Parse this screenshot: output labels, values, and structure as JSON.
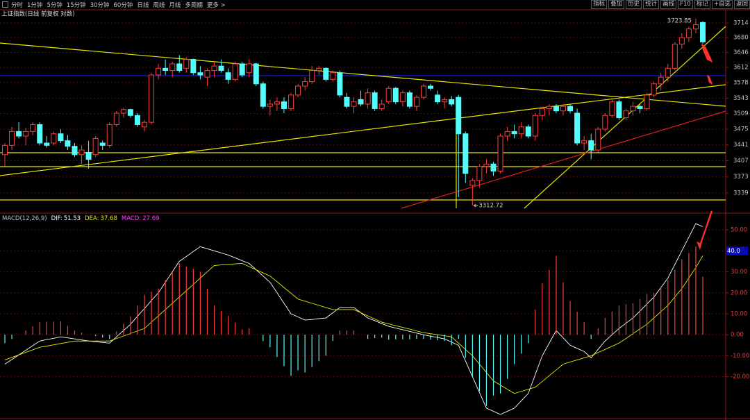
{
  "toolbar": {
    "periods": [
      "分时",
      "1分钟",
      "5分钟",
      "15分钟",
      "30分钟",
      "60分钟",
      "日线",
      "周线",
      "月线",
      "多周期",
      "更多 >"
    ],
    "tools": [
      "指标",
      "叠加",
      "历史",
      "统计",
      "画线",
      "F10",
      "标记",
      "+自选",
      "返回"
    ]
  },
  "chart_data": [
    {
      "type": "candlestick",
      "title": "上证指数(日线 前复权 对数)",
      "log_scale": true,
      "grid": true,
      "ylim": [
        3300,
        3735
      ],
      "yticks": [
        3339,
        3373,
        3407,
        3441,
        3475,
        3509,
        3543,
        3578,
        3612,
        3646,
        3680,
        3714
      ],
      "up_color": "#ff3c3c",
      "down_color": "#54fcfc",
      "max_label": 3723.85,
      "min_label": 3312.72,
      "open": [
        3420,
        3440,
        3470,
        3460,
        3470,
        3485,
        3445,
        3445,
        3465,
        3450,
        3438,
        3420,
        3425,
        3420,
        3445,
        3440,
        3485,
        3510,
        3518,
        3505,
        3480,
        3490,
        3595,
        3610,
        3605,
        3620,
        3610,
        3630,
        3600,
        3590,
        3605,
        3615,
        3600,
        3585,
        3620,
        3600,
        3620,
        3575,
        3525,
        3530,
        3535,
        3520,
        3550,
        3570,
        3580,
        3605,
        3610,
        3585,
        3600,
        3545,
        3525,
        3540,
        3530,
        3555,
        3520,
        3535,
        3565,
        3535,
        3555,
        3525,
        3545,
        3570,
        3550,
        3535,
        3540,
        3545,
        3465,
        3355,
        3365,
        3395,
        3400,
        3385,
        3460,
        3470,
        3465,
        3480,
        3460,
        3505,
        3520,
        3525,
        3515,
        3525,
        3510,
        3445,
        3450,
        3430,
        3475,
        3505,
        3535,
        3500,
        3515,
        3525,
        3520,
        3550,
        3575,
        3590,
        3610,
        3665,
        3680,
        3700,
        3715
      ],
      "high": [
        3445,
        3480,
        3490,
        3478,
        3490,
        3490,
        3460,
        3470,
        3475,
        3462,
        3445,
        3440,
        3450,
        3460,
        3450,
        3490,
        3515,
        3522,
        3520,
        3510,
        3495,
        3600,
        3620,
        3630,
        3625,
        3640,
        3635,
        3632,
        3615,
        3610,
        3625,
        3630,
        3610,
        3625,
        3625,
        3630,
        3622,
        3580,
        3540,
        3545,
        3545,
        3555,
        3575,
        3590,
        3615,
        3615,
        3612,
        3605,
        3605,
        3555,
        3545,
        3560,
        3565,
        3560,
        3540,
        3570,
        3568,
        3560,
        3560,
        3550,
        3575,
        3575,
        3560,
        3545,
        3548,
        3550,
        3470,
        3370,
        3400,
        3410,
        3405,
        3465,
        3480,
        3485,
        3490,
        3485,
        3510,
        3525,
        3530,
        3530,
        3530,
        3530,
        3520,
        3460,
        3465,
        3480,
        3510,
        3540,
        3540,
        3520,
        3535,
        3530,
        3555,
        3580,
        3600,
        3620,
        3670,
        3690,
        3705,
        3723.85,
        3718
      ],
      "low": [
        3395,
        3430,
        3455,
        3440,
        3462,
        3440,
        3435,
        3440,
        3445,
        3430,
        3415,
        3400,
        3390,
        3415,
        3430,
        3435,
        3480,
        3500,
        3500,
        3480,
        3470,
        3485,
        3585,
        3595,
        3590,
        3600,
        3600,
        3595,
        3585,
        3570,
        3590,
        3600,
        3575,
        3580,
        3590,
        3590,
        3570,
        3520,
        3505,
        3515,
        3510,
        3515,
        3545,
        3560,
        3575,
        3595,
        3580,
        3580,
        3545,
        3520,
        3510,
        3525,
        3520,
        3515,
        3515,
        3530,
        3530,
        3525,
        3520,
        3515,
        3540,
        3560,
        3530,
        3520,
        3525,
        3330,
        3360,
        3312.72,
        3350,
        3380,
        3375,
        3380,
        3450,
        3455,
        3455,
        3455,
        3450,
        3495,
        3505,
        3510,
        3505,
        3510,
        3440,
        3430,
        3410,
        3425,
        3470,
        3500,
        3495,
        3495,
        3505,
        3510,
        3515,
        3545,
        3560,
        3580,
        3605,
        3655,
        3670,
        3690,
        3665
      ],
      "close": [
        3440,
        3470,
        3460,
        3470,
        3485,
        3445,
        3440,
        3465,
        3450,
        3438,
        3420,
        3430,
        3410,
        3455,
        3440,
        3485,
        3510,
        3518,
        3505,
        3485,
        3490,
        3595,
        3610,
        3605,
        3620,
        3605,
        3630,
        3600,
        3595,
        3605,
        3615,
        3605,
        3585,
        3620,
        3595,
        3620,
        3575,
        3525,
        3530,
        3535,
        3520,
        3550,
        3570,
        3580,
        3605,
        3610,
        3585,
        3600,
        3550,
        3525,
        3535,
        3530,
        3555,
        3520,
        3530,
        3565,
        3535,
        3555,
        3525,
        3545,
        3570,
        3565,
        3535,
        3540,
        3530,
        3465,
        3380,
        3365,
        3395,
        3400,
        3385,
        3460,
        3470,
        3465,
        3480,
        3460,
        3505,
        3520,
        3525,
        3515,
        3525,
        3515,
        3445,
        3450,
        3430,
        3475,
        3505,
        3535,
        3500,
        3515,
        3525,
        3520,
        3550,
        3575,
        3590,
        3610,
        3665,
        3680,
        3700,
        3710,
        3670
      ]
    },
    {
      "type": "macd",
      "title": "MACD(12,26,9)",
      "grid": true,
      "ylim": [
        -39,
        57
      ],
      "yticks": [
        {
          "value": -20,
          "label": "-20.00"
        },
        {
          "value": -10,
          "label": "-10.00"
        },
        {
          "value": 0,
          "label": "0.00"
        },
        {
          "value": 10,
          "label": "10.00"
        },
        {
          "value": 20,
          "label": "20.00"
        },
        {
          "value": 30,
          "label": "30.00"
        },
        {
          "value": 40,
          "label": "40.00"
        },
        {
          "value": 50,
          "label": "50.00"
        }
      ],
      "marker": {
        "value": 40,
        "label": "40.0"
      },
      "series": [
        {
          "name": "DIF:",
          "color": "#ffffff",
          "values": [
            -14,
            -11.8,
            -9.6,
            -7.4,
            -5.2,
            -3,
            -2.3,
            -1.7,
            -1,
            -1.5,
            -2,
            -2.5,
            -3,
            -3.3,
            -3.7,
            -4,
            -1,
            2,
            5,
            8.8,
            12.5,
            16.3,
            20,
            25,
            30,
            35,
            37.3,
            39.7,
            42,
            41,
            40,
            39,
            38,
            36.7,
            35.3,
            34,
            31,
            28,
            25,
            20,
            15,
            10,
            8.5,
            7,
            7.3,
            7.7,
            8,
            10.5,
            13,
            13,
            13,
            10.5,
            8,
            6.7,
            5.3,
            4,
            3.2,
            2.4,
            1.6,
            0.8,
            0,
            -0.7,
            -1.3,
            -2,
            -3.5,
            -5,
            -12.5,
            -20,
            -27.5,
            -35,
            -36.5,
            -38,
            -36.5,
            -35,
            -31.5,
            -28,
            -19,
            -10,
            -4,
            2,
            -1.5,
            -5,
            -6.5,
            -8,
            -11,
            -7,
            -3,
            0,
            3,
            5.5,
            8,
            11.3,
            14.7,
            18,
            22.5,
            27,
            33.5,
            40,
            46.5,
            53,
            51.53
          ]
        },
        {
          "name": "DEA:",
          "color": "#e8e800",
          "values": [
            -12,
            -10.8,
            -9.6,
            -8.4,
            -7.2,
            -6,
            -5.4,
            -4.8,
            -4.2,
            -3.6,
            -3,
            -3,
            -3,
            -3,
            -3,
            -3,
            -1.8,
            -0.6,
            0.6,
            1.8,
            3,
            6,
            9,
            12,
            15,
            18,
            21,
            24,
            27,
            30,
            33,
            33.3,
            33.5,
            33.8,
            34,
            32.5,
            31,
            29.5,
            28,
            25.3,
            22.5,
            19.8,
            17,
            16,
            15,
            14,
            13,
            12,
            12,
            12,
            12,
            10.5,
            9,
            7.5,
            6,
            5.2,
            4.3,
            3.5,
            2.7,
            1.8,
            1,
            0.5,
            0,
            -0.5,
            -1,
            -4,
            -7,
            -10,
            -14,
            -18,
            -22,
            -24,
            -26,
            -28,
            -27,
            -26,
            -25,
            -22.3,
            -19.5,
            -16.8,
            -14,
            -13,
            -12,
            -11,
            -10,
            -8.5,
            -7,
            -5.5,
            -4,
            -1.8,
            0.5,
            2.8,
            5,
            8,
            11,
            14,
            18,
            22,
            27,
            32,
            37.68
          ]
        },
        {
          "name": "MACD:",
          "color": "#ff40ff",
          "up_color": "#ff3c3c",
          "down_color": "#54fcfc",
          "values": [
            -4,
            -2,
            0,
            2,
            4,
            6,
            6.2,
            6.2,
            6.4,
            4.2,
            2,
            1,
            0,
            -0.6,
            -1.4,
            -2,
            1.6,
            5.2,
            8.8,
            14,
            19,
            20.6,
            22,
            26,
            30,
            34,
            32.6,
            31.4,
            30,
            22,
            14,
            11.4,
            9,
            5.8,
            2.6,
            3,
            0,
            -3,
            -6,
            -10.6,
            -15,
            -19.6,
            -17,
            -18,
            -15.4,
            -12.6,
            -10,
            -3,
            2,
            2,
            2,
            0,
            -2,
            -1.6,
            -1.4,
            -2.4,
            -2.2,
            -2.2,
            -2.2,
            -2,
            -2,
            -2.4,
            -2.6,
            -3,
            -5,
            -2,
            -11,
            -20,
            -27,
            -34,
            -29,
            -28,
            -21,
            -14,
            -9,
            -4,
            12,
            24.6,
            31,
            37.6,
            25,
            16,
            11,
            6,
            -2,
            3,
            8,
            11,
            14,
            14.6,
            15,
            17,
            19.4,
            20,
            23,
            26,
            31,
            36,
            39,
            42,
            27.69
          ]
        }
      ]
    }
  ]
}
